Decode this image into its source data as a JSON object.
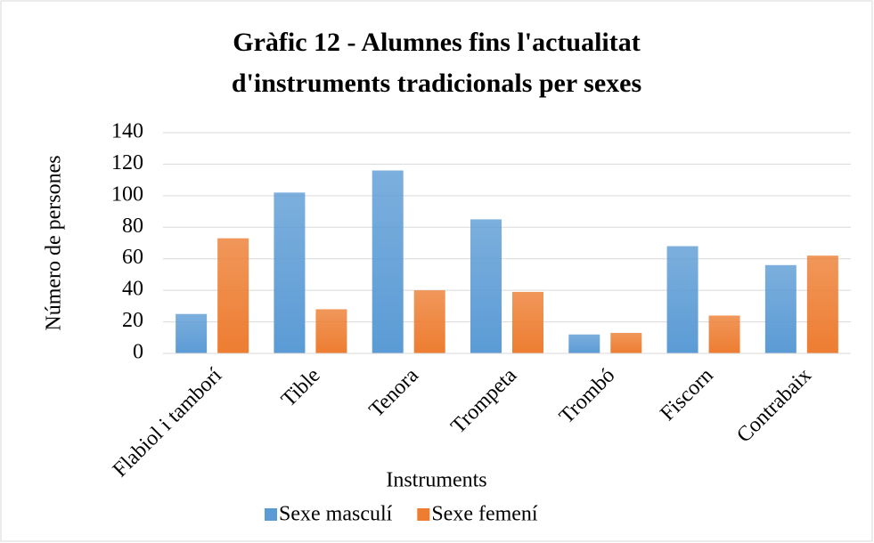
{
  "chart_data": {
    "type": "bar",
    "title": [
      "Gràfic 12 - Alumnes fins l'actualitat",
      "d'instruments tradicionals per sexes"
    ],
    "x_label": "Instruments",
    "y_label": "Número de persones",
    "categories": [
      "Flabiol i tamborí",
      "Tible",
      "Tenora",
      "Trompeta",
      "Trombó",
      "Fiscorn",
      "Contrabaix"
    ],
    "series": [
      {
        "name": "Sexe masculí",
        "color": "#5b9bd5",
        "values": [
          25,
          102,
          116,
          85,
          12,
          68,
          56
        ]
      },
      {
        "name": "Sexe femení",
        "color": "#ed7d31",
        "values": [
          73,
          28,
          40,
          39,
          13,
          24,
          62
        ]
      }
    ],
    "ylim": [
      0,
      140
    ],
    "yticks": [
      0,
      20,
      40,
      60,
      80,
      100,
      120,
      140
    ],
    "grid": true,
    "legend": "bottom"
  }
}
